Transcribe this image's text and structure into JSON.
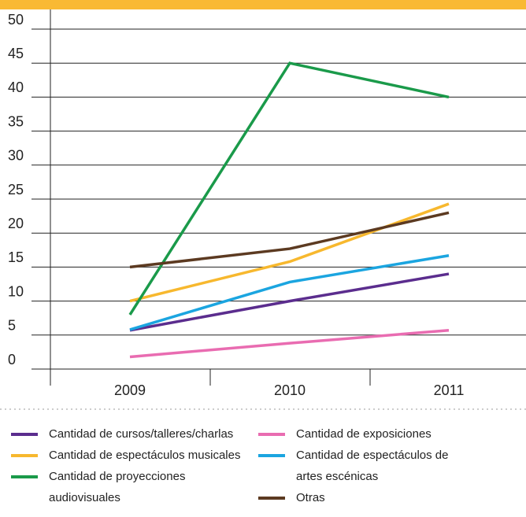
{
  "chart_data": {
    "type": "line",
    "categories": [
      "2009",
      "2010",
      "2011"
    ],
    "series": [
      {
        "name": "Cantidad de cursos/talleres/charlas",
        "color": "#5b2d8e",
        "values": [
          5.7,
          10,
          14
        ]
      },
      {
        "name": "Cantidad de espectáculos musicales",
        "color": "#f7b82e",
        "values": [
          10,
          15.8,
          24.3
        ]
      },
      {
        "name": "Cantidad de proyecciones audiovisuales",
        "color": "#1a9a4a",
        "values": [
          8,
          45,
          40
        ]
      },
      {
        "name": "Cantidad de exposiciones",
        "color": "#e96cb1",
        "values": [
          1.8,
          3.8,
          5.7
        ]
      },
      {
        "name": "Cantidad de espectáculos de artes escénicas",
        "color": "#1ba5e0",
        "values": [
          5.8,
          12.8,
          16.7
        ]
      },
      {
        "name": "Otras",
        "color": "#5c3a21",
        "values": [
          15,
          17.7,
          23
        ]
      }
    ],
    "ylim": [
      0,
      50
    ],
    "yticks": [
      0,
      5,
      10,
      15,
      20,
      25,
      30,
      35,
      40,
      45,
      50
    ],
    "grid": true
  }
}
